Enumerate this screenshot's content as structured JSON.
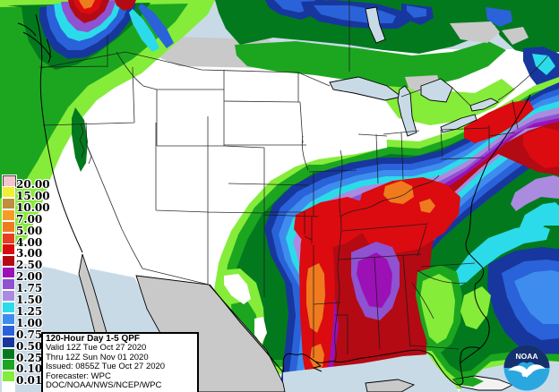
{
  "info_box": {
    "title": "120-Hour Day 1-5 QPF",
    "valid_line": "Valid 12Z Tue Oct 27 2020",
    "thru_line": "Thru 12Z Sun Nov 01 2020",
    "issued_line": "Issued: 0855Z Tue Oct 27 2020",
    "forecaster_line": "Forecaster: WPC",
    "agency_line": "DOC/NOAA/NWS/NCEP/WPC"
  },
  "legend": {
    "entries": [
      {
        "label": "20.00",
        "color": "#F3C6CF"
      },
      {
        "label": "15.00",
        "color": "#F2EF33"
      },
      {
        "label": "10.00",
        "color": "#C08E3C"
      },
      {
        "label": "7.00",
        "color": "#F59C27"
      },
      {
        "label": "5.00",
        "color": "#EF7B1E"
      },
      {
        "label": "4.00",
        "color": "#E83F22"
      },
      {
        "label": "3.00",
        "color": "#DB0B10"
      },
      {
        "label": "2.50",
        "color": "#B30A14"
      },
      {
        "label": "2.00",
        "color": "#9B11B5"
      },
      {
        "label": "1.75",
        "color": "#8F52D1"
      },
      {
        "label": "1.50",
        "color": "#AA8BDF"
      },
      {
        "label": "1.25",
        "color": "#2CDBE9"
      },
      {
        "label": "1.00",
        "color": "#3E8DEE"
      },
      {
        "label": "0.75",
        "color": "#2A62D9"
      },
      {
        "label": "0.50",
        "color": "#17379E"
      },
      {
        "label": "0.25",
        "color": "#03791E"
      },
      {
        "label": "0.10",
        "color": "#1CA620"
      },
      {
        "label": "0.01",
        "color": "#85EC3A"
      }
    ],
    "below_min_color": "#FFFFFF"
  },
  "logo": {
    "text": "NOAA",
    "dark_color": "#15306E",
    "light_color": "#2BA7E0"
  },
  "base_colors": {
    "water": "#C9DAE7",
    "foreign_land": "#C9C9C9",
    "us_land": "#FFFFFF",
    "boundary": "#000000"
  }
}
